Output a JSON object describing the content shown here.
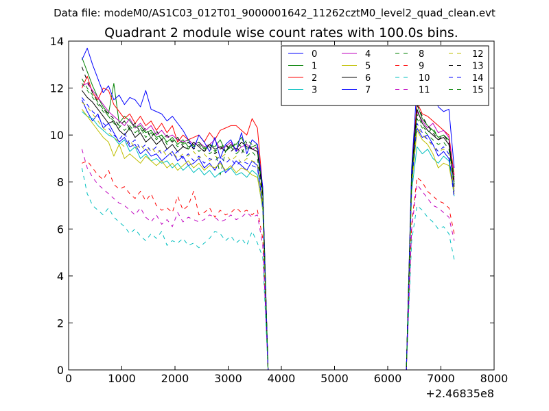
{
  "suptitle": "Data file: modeM0/AS1C03_012T01_9000001642_11262cztM0_level2_quad_clean.evt",
  "chart_data": {
    "type": "line",
    "title": "Quadrant 2 module wise count rates with 100.0s bins.",
    "xlabel": "",
    "ylabel": "",
    "x_offset_label": "+2.46835e8",
    "xlim": [
      0,
      8000
    ],
    "ylim": [
      0,
      14
    ],
    "xticks": [
      "0",
      "1000",
      "2000",
      "3000",
      "4000",
      "5000",
      "6000",
      "7000",
      "8000"
    ],
    "yticks": [
      "0",
      "2",
      "4",
      "6",
      "8",
      "10",
      "12",
      "14"
    ],
    "grid": false,
    "legend_position": "top-right",
    "legend_columns": 4,
    "x": [
      250,
      350,
      450,
      550,
      650,
      750,
      850,
      950,
      1050,
      1150,
      1250,
      1350,
      1450,
      1550,
      1650,
      1750,
      1850,
      1950,
      2050,
      2150,
      2250,
      2350,
      2450,
      2550,
      2650,
      2750,
      2850,
      2950,
      3050,
      3150,
      3250,
      3350,
      3450,
      3550,
      3650,
      3750,
      6350,
      6450,
      6550,
      6650,
      6750,
      6850,
      6950,
      7050,
      7150,
      7250
    ],
    "series": [
      {
        "name": "0",
        "color": "#0000ff",
        "dash": false,
        "values": [
          11.5,
          11.0,
          10.6,
          10.9,
          10.3,
          10.5,
          10.1,
          9.7,
          9.9,
          9.5,
          9.6,
          9.2,
          9.4,
          9.1,
          9.2,
          8.9,
          9.1,
          9.3,
          8.9,
          9.1,
          8.7,
          8.8,
          9.0,
          8.6,
          8.8,
          8.5,
          8.9,
          8.4,
          8.6,
          8.9,
          8.7,
          8.5,
          8.9,
          8.7,
          7.0,
          0,
          0,
          8.0,
          10.3,
          9.9,
          10.0,
          9.6,
          9.1,
          9.3,
          9.0,
          7.6
        ]
      },
      {
        "name": "1",
        "color": "#008000",
        "dash": false,
        "values": [
          13.3,
          12.7,
          12.1,
          11.6,
          11.2,
          10.9,
          12.2,
          10.5,
          10.8,
          10.6,
          10.3,
          10.4,
          10.1,
          10.2,
          9.9,
          10.0,
          9.7,
          9.9,
          9.6,
          9.8,
          9.5,
          9.6,
          9.7,
          9.4,
          9.6,
          9.5,
          9.8,
          9.3,
          9.5,
          9.6,
          9.9,
          9.4,
          9.5,
          9.6,
          7.6,
          0,
          0,
          8.2,
          11.3,
          10.7,
          10.4,
          10.2,
          9.9,
          10.0,
          9.8,
          8.0
        ]
      },
      {
        "name": "2",
        "color": "#ff0000",
        "dash": false,
        "values": [
          12.0,
          12.5,
          11.8,
          11.5,
          12.0,
          11.9,
          11.3,
          11.0,
          10.7,
          10.9,
          10.5,
          10.8,
          10.4,
          10.6,
          10.2,
          10.5,
          10.1,
          10.4,
          9.7,
          10.0,
          9.8,
          9.9,
          10.0,
          9.7,
          10.1,
          9.8,
          10.2,
          10.3,
          10.4,
          10.4,
          10.2,
          10.0,
          10.7,
          10.3,
          7.7,
          0,
          0,
          8.5,
          11.4,
          10.9,
          10.8,
          10.6,
          10.4,
          10.2,
          10.0,
          8.3
        ]
      },
      {
        "name": "3",
        "color": "#00bfbf",
        "dash": false,
        "values": [
          11.0,
          10.8,
          10.7,
          10.4,
          10.2,
          10.0,
          9.9,
          9.6,
          9.8,
          9.3,
          9.5,
          9.0,
          9.2,
          8.9,
          9.0,
          8.8,
          8.9,
          8.6,
          8.8,
          8.5,
          8.7,
          8.4,
          8.6,
          8.3,
          8.5,
          8.2,
          8.4,
          8.5,
          8.6,
          8.3,
          8.4,
          8.2,
          8.5,
          8.3,
          6.8,
          0,
          0,
          7.6,
          9.5,
          9.2,
          9.4,
          9.0,
          8.8,
          9.1,
          8.9,
          7.4
        ]
      },
      {
        "name": "4",
        "color": "#bf00bf",
        "dash": false,
        "values": [
          12.1,
          12.2,
          11.9,
          11.6,
          11.3,
          11.0,
          10.8,
          10.6,
          10.4,
          10.7,
          10.3,
          10.5,
          10.2,
          10.4,
          10.0,
          10.2,
          9.9,
          10.0,
          9.8,
          9.7,
          9.8,
          9.6,
          9.7,
          9.5,
          9.6,
          9.8,
          9.4,
          9.5,
          9.7,
          9.3,
          9.5,
          9.6,
          9.4,
          9.5,
          7.4,
          0,
          0,
          8.1,
          11.0,
          10.6,
          10.3,
          10.5,
          10.1,
          10.2,
          9.9,
          8.1
        ]
      },
      {
        "name": "5",
        "color": "#bfbf00",
        "dash": false,
        "values": [
          11.1,
          10.8,
          10.5,
          10.2,
          9.9,
          9.7,
          9.1,
          9.6,
          9.0,
          9.2,
          9.0,
          8.8,
          9.1,
          8.9,
          8.7,
          8.9,
          8.6,
          8.8,
          8.5,
          8.7,
          8.9,
          8.6,
          8.8,
          8.5,
          8.7,
          8.6,
          8.8,
          8.5,
          8.7,
          8.4,
          8.6,
          8.5,
          8.3,
          8.2,
          6.9,
          0,
          0,
          7.8,
          10.2,
          9.8,
          9.6,
          9.2,
          8.6,
          8.8,
          8.7,
          7.5
        ]
      },
      {
        "name": "6",
        "color": "#000000",
        "dash": false,
        "values": [
          11.9,
          11.6,
          11.4,
          11.1,
          10.8,
          10.5,
          10.6,
          10.2,
          10.0,
          10.3,
          9.9,
          10.1,
          9.7,
          9.9,
          9.6,
          9.8,
          9.4,
          9.6,
          9.3,
          9.5,
          9.4,
          9.7,
          9.5,
          9.3,
          9.6,
          9.4,
          9.5,
          9.3,
          9.6,
          9.4,
          9.7,
          9.5,
          9.4,
          9.3,
          7.5,
          0,
          0,
          8.3,
          11.1,
          10.5,
          10.2,
          10.0,
          9.8,
          9.9,
          9.6,
          7.9
        ]
      },
      {
        "name": "7",
        "color": "#0000ff",
        "dash": false,
        "values": [
          13.2,
          13.7,
          13.0,
          12.4,
          11.8,
          12.1,
          11.5,
          11.7,
          11.3,
          11.6,
          11.5,
          11.2,
          11.9,
          11.1,
          11.0,
          10.9,
          10.6,
          10.8,
          10.5,
          10.2,
          9.8,
          9.4,
          10.0,
          9.7,
          9.3,
          9.9,
          9.0,
          9.6,
          9.8,
          9.3,
          10.1,
          9.2,
          9.8,
          9.6,
          7.8,
          0,
          0,
          8.6,
          12.1,
          11.7,
          11.4,
          11.8,
          11.2,
          11.0,
          11.1,
          8.6
        ]
      },
      {
        "name": "8",
        "color": "#008000",
        "dash": true,
        "values": [
          12.2,
          11.9,
          11.6,
          11.3,
          11.0,
          10.8,
          10.5,
          10.3,
          10.6,
          10.2,
          10.4,
          10.0,
          10.2,
          9.9,
          10.1,
          9.8,
          10.0,
          9.7,
          9.9,
          9.6,
          9.8,
          9.5,
          9.7,
          9.4,
          9.6,
          9.3,
          9.5,
          9.6,
          9.4,
          9.7,
          9.5,
          9.8,
          9.6,
          9.4,
          7.6,
          0,
          0,
          8.2,
          10.9,
          10.4,
          10.1,
          10.3,
          9.9,
          10.0,
          9.7,
          8.2
        ]
      },
      {
        "name": "9",
        "color": "#ff0000",
        "dash": true,
        "values": [
          8.8,
          8.9,
          8.6,
          8.3,
          8.1,
          8.5,
          7.9,
          7.7,
          7.8,
          7.5,
          7.3,
          7.6,
          7.2,
          7.5,
          7.0,
          6.8,
          6.9,
          6.7,
          7.4,
          6.8,
          7.0,
          7.6,
          6.6,
          6.7,
          6.9,
          6.5,
          6.8,
          6.6,
          6.7,
          6.9,
          6.7,
          6.8,
          6.6,
          6.8,
          5.6,
          0,
          0,
          6.2,
          8.2,
          8.0,
          7.6,
          7.4,
          7.2,
          7.1,
          6.9,
          5.8
        ]
      },
      {
        "name": "10",
        "color": "#00bfbf",
        "dash": true,
        "values": [
          8.6,
          7.5,
          7.0,
          6.8,
          6.6,
          6.9,
          6.5,
          6.3,
          6.1,
          5.8,
          6.0,
          5.7,
          5.5,
          5.8,
          5.6,
          5.9,
          5.3,
          5.5,
          5.4,
          5.6,
          5.3,
          5.4,
          5.2,
          5.4,
          5.6,
          5.9,
          5.8,
          5.5,
          5.7,
          5.4,
          5.6,
          5.3,
          5.9,
          5.4,
          4.8,
          0,
          0,
          5.5,
          7.0,
          6.8,
          6.5,
          6.3,
          6.0,
          6.1,
          5.8,
          4.7
        ]
      },
      {
        "name": "11",
        "color": "#bf00bf",
        "dash": true,
        "values": [
          9.4,
          8.6,
          8.2,
          7.9,
          7.7,
          7.5,
          7.3,
          7.1,
          7.0,
          6.8,
          6.6,
          6.9,
          6.5,
          6.3,
          6.6,
          6.2,
          6.4,
          6.1,
          6.7,
          6.3,
          6.5,
          6.4,
          6.3,
          6.4,
          6.6,
          6.5,
          6.3,
          6.4,
          6.6,
          6.4,
          6.5,
          6.7,
          6.5,
          6.6,
          5.3,
          0,
          0,
          6.0,
          7.9,
          7.6,
          7.3,
          7.0,
          6.9,
          6.7,
          6.5,
          5.5
        ]
      },
      {
        "name": "12",
        "color": "#bfbf00",
        "dash": true,
        "values": [
          11.4,
          11.2,
          10.9,
          10.6,
          10.3,
          10.1,
          9.9,
          9.7,
          9.5,
          9.8,
          9.4,
          9.6,
          9.3,
          9.5,
          9.2,
          9.4,
          9.1,
          9.3,
          9.0,
          9.2,
          9.1,
          9.3,
          9.0,
          9.2,
          8.9,
          9.1,
          9.0,
          9.2,
          8.9,
          9.1,
          8.8,
          9.0,
          8.9,
          8.8,
          7.1,
          0,
          0,
          7.9,
          10.4,
          10.0,
          9.8,
          9.5,
          9.3,
          9.4,
          9.2,
          7.7
        ]
      },
      {
        "name": "13",
        "color": "#000000",
        "dash": true,
        "values": [
          12.9,
          12.3,
          11.8,
          11.4,
          11.1,
          10.9,
          10.7,
          10.4,
          10.6,
          10.3,
          10.5,
          10.1,
          10.3,
          9.9,
          10.2,
          9.8,
          10.0,
          9.7,
          9.9,
          9.5,
          9.7,
          9.4,
          9.6,
          9.3,
          9.5,
          9.2,
          9.4,
          9.6,
          9.3,
          9.5,
          9.2,
          9.7,
          9.4,
          9.3,
          7.5,
          0,
          0,
          8.3,
          11.3,
          10.8,
          10.4,
          10.1,
          9.8,
          10.0,
          9.7,
          7.8
        ]
      },
      {
        "name": "14",
        "color": "#0000ff",
        "dash": true,
        "values": [
          11.6,
          11.3,
          11.0,
          10.8,
          10.5,
          10.3,
          10.0,
          9.8,
          10.1,
          9.6,
          9.8,
          9.4,
          9.6,
          9.3,
          9.5,
          9.2,
          9.4,
          9.1,
          9.3,
          9.0,
          9.2,
          8.9,
          9.1,
          8.8,
          9.0,
          8.9,
          9.1,
          8.8,
          9.0,
          8.7,
          8.9,
          8.8,
          8.7,
          8.6,
          7.0,
          0,
          0,
          7.9,
          10.5,
          10.1,
          9.8,
          9.6,
          9.3,
          9.5,
          9.2,
          7.3
        ]
      },
      {
        "name": "15",
        "color": "#008000",
        "dash": true,
        "values": [
          12.4,
          12.0,
          11.7,
          11.4,
          11.1,
          10.8,
          10.6,
          10.4,
          10.2,
          10.4,
          10.1,
          10.3,
          9.9,
          10.1,
          9.8,
          10.0,
          9.6,
          9.8,
          9.5,
          9.7,
          9.4,
          9.6,
          9.3,
          9.5,
          9.2,
          9.4,
          8.3,
          9.3,
          9.5,
          9.2,
          9.4,
          9.1,
          9.3,
          9.0,
          7.3,
          0,
          0,
          8.1,
          10.7,
          10.3,
          10.0,
          9.8,
          9.6,
          9.7,
          9.4,
          7.9
        ]
      }
    ]
  }
}
